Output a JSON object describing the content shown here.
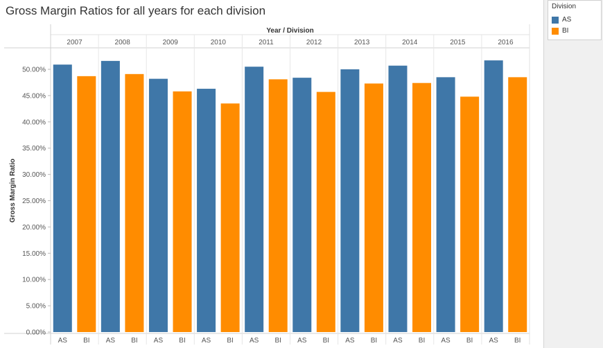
{
  "title": "Gross Margin Ratios for all years for each division",
  "legend": {
    "title": "Division",
    "items": [
      {
        "label": "AS",
        "color": "#3f77a8"
      },
      {
        "label": "BI",
        "color": "#ff8c00"
      }
    ]
  },
  "chart_data": {
    "type": "bar",
    "title": "Gross Margin Ratios for all years for each division",
    "column_header": "Year / Division",
    "ylabel": "Gross Margin Ratio",
    "ylim": [
      0,
      0.52
    ],
    "yticks": [
      0,
      0.05,
      0.1,
      0.15,
      0.2,
      0.25,
      0.3,
      0.35,
      0.4,
      0.45,
      0.5
    ],
    "ytick_labels": [
      "0.00%",
      "5.00%",
      "10.00%",
      "15.00%",
      "20.00%",
      "25.00%",
      "30.00%",
      "35.00%",
      "40.00%",
      "45.00%",
      "50.00%"
    ],
    "grid": false,
    "legend_position": "top-right",
    "years": [
      "2007",
      "2008",
      "2009",
      "2010",
      "2011",
      "2012",
      "2013",
      "2014",
      "2015",
      "2016"
    ],
    "divisions": [
      "AS",
      "BI"
    ],
    "series": [
      {
        "name": "AS",
        "color": "#3f77a8",
        "values": [
          0.509,
          0.516,
          0.482,
          0.463,
          0.505,
          0.484,
          0.5,
          0.507,
          0.485,
          0.517
        ]
      },
      {
        "name": "BI",
        "color": "#ff8c00",
        "values": [
          0.487,
          0.491,
          0.458,
          0.435,
          0.481,
          0.457,
          0.473,
          0.474,
          0.448,
          0.485
        ]
      }
    ]
  }
}
